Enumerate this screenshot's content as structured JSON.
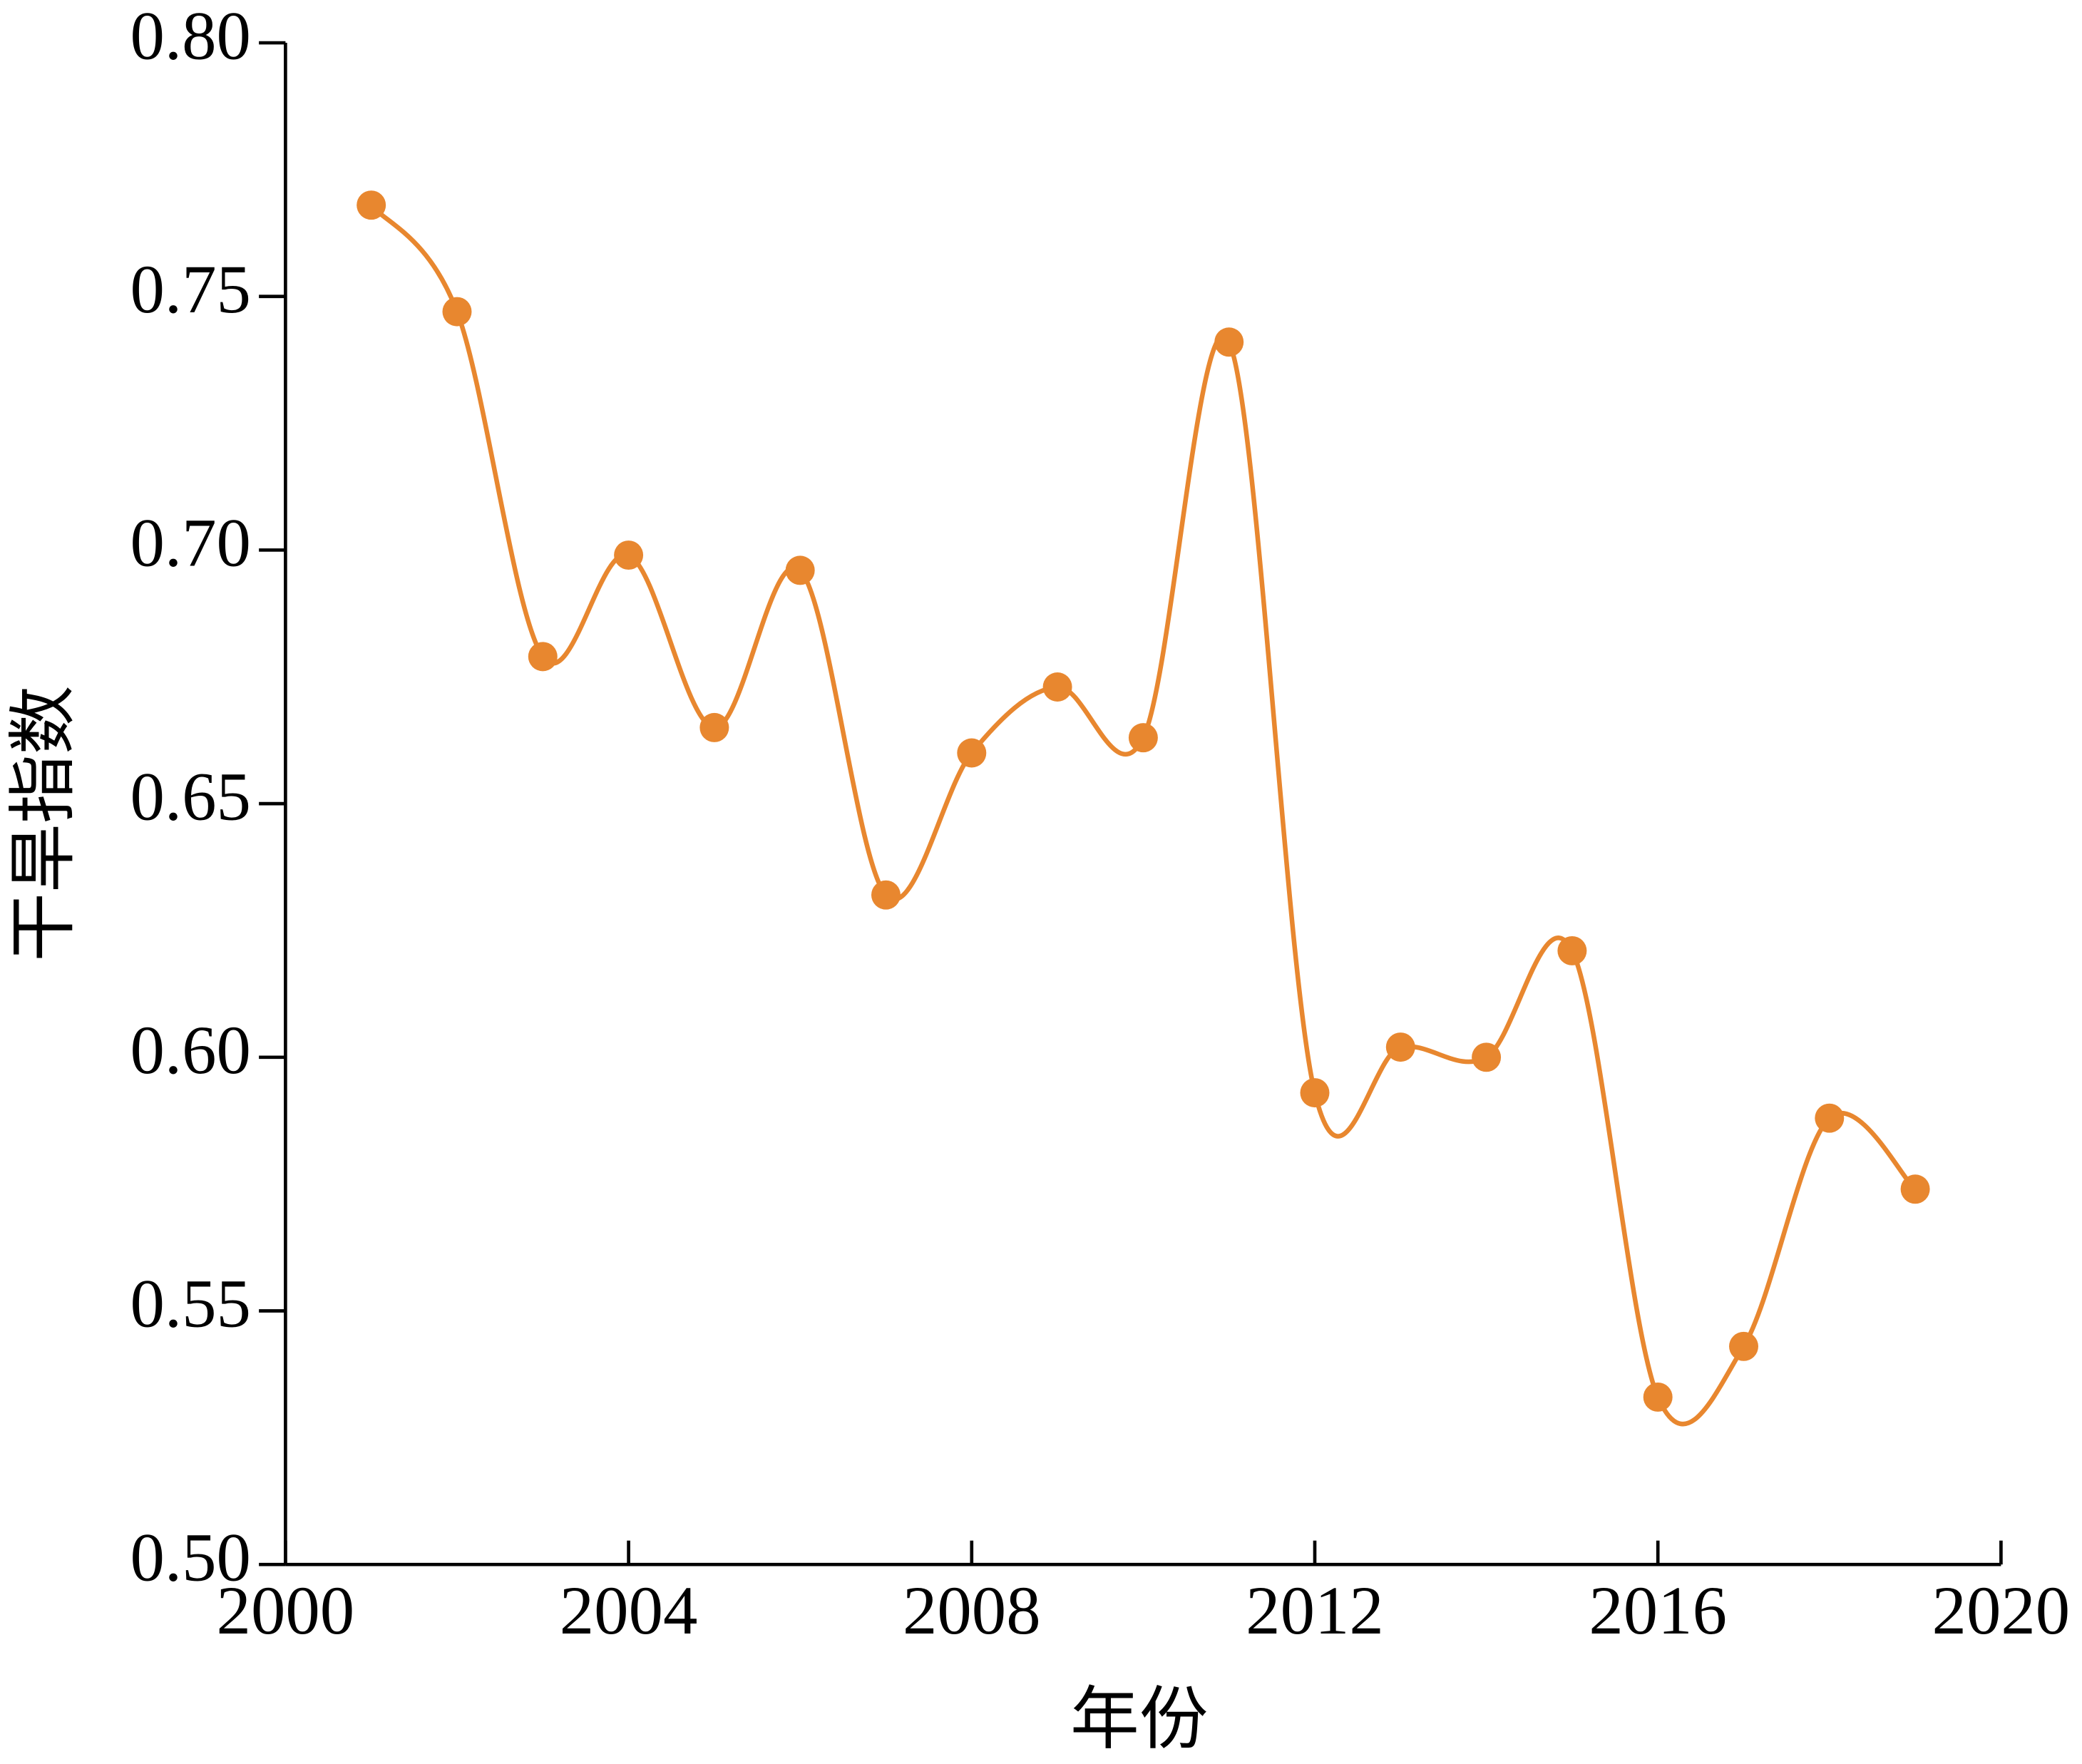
{
  "chart_data": {
    "type": "line",
    "x_label": "年份",
    "y_label": "干旱指数",
    "x": [
      2001,
      2002,
      2003,
      2004,
      2005,
      2006,
      2007,
      2008,
      2009,
      2010,
      2011,
      2012,
      2013,
      2014,
      2015,
      2016,
      2017,
      2018,
      2019
    ],
    "series": [
      {
        "color": "#e8872f",
        "values": [
          0.768,
          0.747,
          0.679,
          0.699,
          0.665,
          0.696,
          0.632,
          0.66,
          0.673,
          0.663,
          0.741,
          0.593,
          0.602,
          0.6,
          0.621,
          0.533,
          0.543,
          0.588,
          0.574
        ]
      }
    ],
    "xlim": [
      2000,
      2020
    ],
    "xticks": [
      2000,
      2004,
      2008,
      2012,
      2016,
      2020
    ],
    "ylim": [
      0.5,
      0.8
    ],
    "yticks": [
      {
        "value": 0.5,
        "label": "0.50"
      },
      0.55,
      {
        "value": 0.6,
        "label": "0.60"
      },
      0.65,
      {
        "value": 0.7,
        "label": "0.70"
      },
      0.75,
      {
        "value": 0.8,
        "label": "0.80"
      }
    ],
    "grid": false,
    "smooth": true
  }
}
